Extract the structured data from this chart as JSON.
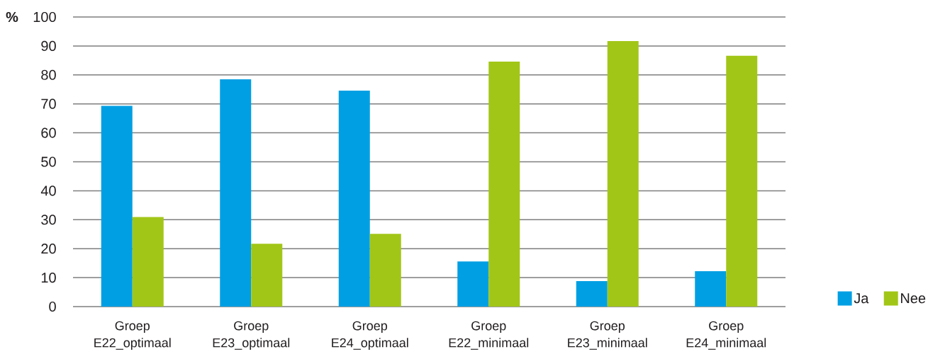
{
  "chart_data": {
    "type": "bar",
    "ylabel": "%",
    "categories": [
      "Groep E22_optimaal",
      "Groep E23_optimaal",
      "Groep E24_optimaal",
      "Groep E22_minimaal",
      "Groep E23_minimaal",
      "Groep E24_minimaal"
    ],
    "series": [
      {
        "name": "Ja",
        "color": "#009fe3",
        "values": [
          69.3,
          78.5,
          74.6,
          15.6,
          8.8,
          12.2
        ]
      },
      {
        "name": "Nee",
        "color": "#a2c617",
        "values": [
          30.9,
          21.7,
          25.1,
          84.6,
          91.7,
          86.6
        ]
      }
    ],
    "ylim": [
      0,
      100
    ],
    "yticks": [
      0,
      10,
      20,
      30,
      40,
      50,
      60,
      70,
      80,
      90,
      100
    ],
    "grid": "y",
    "legend": "bottom right"
  }
}
